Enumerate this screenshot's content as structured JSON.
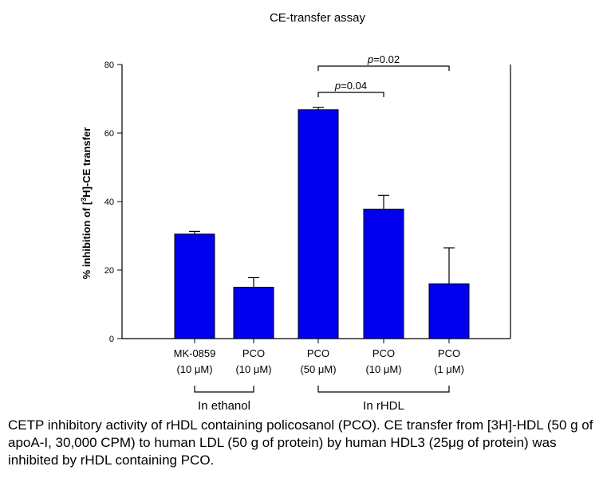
{
  "chart_data": {
    "type": "bar",
    "title": "CE-transfer assay",
    "ylabel": "% inhibition of [3H]-CE transfer",
    "ylim": [
      0,
      80
    ],
    "yticks": [
      0,
      20,
      40,
      60,
      80
    ],
    "categories": [
      {
        "name": "MK-0859",
        "dose": "(10 μM)"
      },
      {
        "name": "PCO",
        "dose": "(10 μM)"
      },
      {
        "name": "PCO",
        "dose": "(50 μM)"
      },
      {
        "name": "PCO",
        "dose": "(10 μM)"
      },
      {
        "name": "PCO",
        "dose": "(1 μM)"
      }
    ],
    "values": [
      30.5,
      15,
      66.8,
      37.8,
      16
    ],
    "errors": [
      0.8,
      2.8,
      0.7,
      4.0,
      10.5
    ],
    "groups": [
      {
        "label": "In  ethanol",
        "from": 0,
        "to": 1
      },
      {
        "label": "In rHDL",
        "from": 2,
        "to": 4
      }
    ],
    "brackets": [
      {
        "label": "p=0.04",
        "from": 2,
        "to": 3
      },
      {
        "label": "p=0.02",
        "from": 2,
        "to": 4
      }
    ],
    "bar_color": "#0000ee",
    "grid": false,
    "legend": "none"
  },
  "caption": "CETP inhibitory activity of rHDL containing policosanol (PCO). CE transfer from [3H]-HDL (50 g of apoA-I, 30,000 CPM) to human LDL (50 g of protein) by human HDL3 (25μg of protein) was inhibited by rHDL containing PCO."
}
